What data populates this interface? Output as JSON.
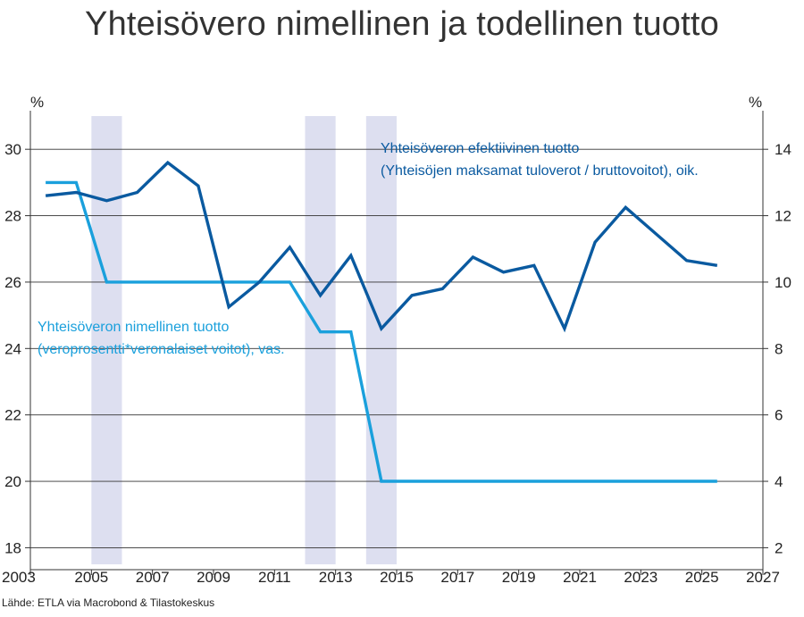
{
  "title": "Yhteisövero nimellinen ja todellinen tuotto",
  "source": "Lähde: ETLA via Macrobond & Tilastokeskus",
  "colors": {
    "effective": "#0a5aa0",
    "nominal": "#1aa0dc",
    "recession": "#dddff0",
    "grid": "#333333",
    "axis": "#333333"
  },
  "chart_data": {
    "type": "line",
    "title": "Yhteisövero nimellinen ja todellinen tuotto",
    "xlim": [
      2003,
      2027
    ],
    "x_ticks": [
      "2003",
      "2005",
      "2007",
      "2009",
      "2011",
      "2013",
      "2015",
      "2017",
      "2019",
      "2021",
      "2023",
      "2025",
      "2027"
    ],
    "y_left": {
      "unit": "%",
      "lim": [
        17.5,
        31
      ],
      "ticks": [
        "18",
        "20",
        "22",
        "24",
        "26",
        "28",
        "30"
      ]
    },
    "y_right": {
      "unit": "%",
      "lim": [
        1.5,
        15
      ],
      "ticks": [
        "2",
        "4",
        "6",
        "8",
        "10",
        "12",
        "14"
      ]
    },
    "grid": true,
    "shaded_periods": [
      [
        2005.0,
        2006.0
      ],
      [
        2012.0,
        2013.0
      ],
      [
        2014.0,
        2015.0
      ]
    ],
    "series": [
      {
        "name": "Yhteisöveron efektiivinen tuotto",
        "label_line1": "Yhteisöveron efektiivinen tuotto",
        "label_line2": "(Yhteisöjen maksamat tuloverot / bruttovoitot), oik.",
        "axis": "right",
        "x": [
          2003.5,
          2004.5,
          2005.5,
          2006.5,
          2007.5,
          2008.5,
          2009.5,
          2010.5,
          2011.5,
          2012.5,
          2013.5,
          2014.5,
          2015.5,
          2016.5,
          2017.5,
          2018.5,
          2019.5,
          2020.5,
          2021.5,
          2022.5,
          2023.5,
          2024.5,
          2025.5
        ],
        "values": [
          12.6,
          12.7,
          12.45,
          12.7,
          13.6,
          12.9,
          9.25,
          10.0,
          11.05,
          9.6,
          10.8,
          8.6,
          9.6,
          9.8,
          10.75,
          10.3,
          10.5,
          8.6,
          11.2,
          12.25,
          11.45,
          10.65,
          10.5
        ]
      },
      {
        "name": "Yhteisöveron nimellinen tuotto",
        "label_line1": "Yhteisöveron nimellinen tuotto",
        "label_line2": "(veroprosentti*veronalaiset voitot), vas.",
        "axis": "left",
        "x": [
          2003.5,
          2004.5,
          2005.5,
          2011.5,
          2012.5,
          2013.5,
          2014.5,
          2025.5
        ],
        "values": [
          29.0,
          29.0,
          26.0,
          26.0,
          24.5,
          24.5,
          20.0,
          20.0
        ]
      }
    ]
  }
}
